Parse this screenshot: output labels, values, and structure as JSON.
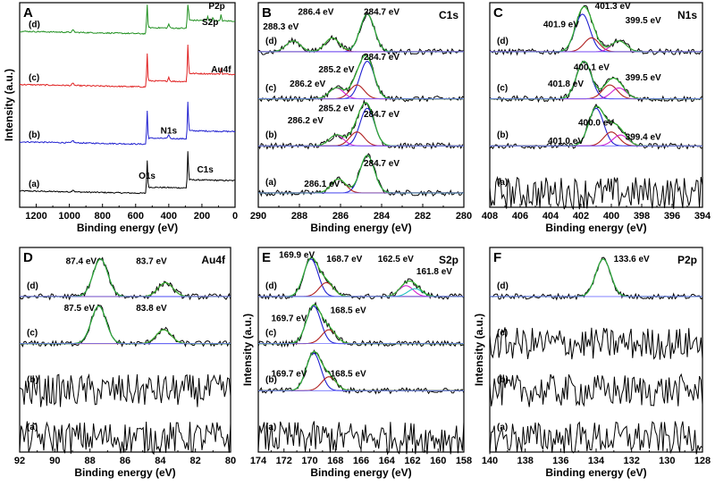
{
  "chart_data": [
    {
      "panel": "A",
      "type": "line",
      "xlabel": "Binding energy (eV)",
      "ylabel": "Intensity (a.u.)",
      "xlim": [
        1300,
        0
      ],
      "xticks": [
        "1200",
        "1000",
        "800",
        "600",
        "400",
        "200",
        "0"
      ],
      "series": [
        {
          "name": "(a)",
          "color": "#000000",
          "baseline": 0.06
        },
        {
          "name": "(b)",
          "color": "#2020d0",
          "baseline": 0.3
        },
        {
          "name": "(c)",
          "color": "#e02020",
          "baseline": 0.58
        },
        {
          "name": "(d)",
          "color": "#209020",
          "baseline": 0.84
        }
      ],
      "annotations": [
        {
          "text": "P2p",
          "x": 110,
          "y": 0.97
        },
        {
          "text": "S2p",
          "x": 150,
          "y": 0.89
        },
        {
          "text": "Au4f",
          "x": 84,
          "y": 0.66
        },
        {
          "text": "N1s",
          "x": 400,
          "y": 0.36
        },
        {
          "text": "O1s",
          "x": 531,
          "y": 0.14
        },
        {
          "text": "C1s",
          "x": 180,
          "y": 0.17
        }
      ]
    },
    {
      "panel": "B",
      "type": "line",
      "title": "C1s",
      "xlabel": "Binding energy (eV)",
      "xlim": [
        290,
        280
      ],
      "xticks": [
        "290",
        "288",
        "286",
        "284",
        "282",
        "280"
      ],
      "series": [
        {
          "name": "(a)",
          "peaks": [
            284.7,
            286.1
          ]
        },
        {
          "name": "(b)",
          "peaks": [
            284.7,
            285.2,
            286.2
          ]
        },
        {
          "name": "(c)",
          "peaks": [
            284.7,
            285.2,
            286.2
          ]
        },
        {
          "name": "(d)",
          "peaks": [
            284.7,
            286.4,
            288.3
          ]
        }
      ],
      "annotations": [
        {
          "text": "284.7 eV",
          "x": 284.0,
          "y": 0.2
        },
        {
          "text": "286.1 eV",
          "x": 286.9,
          "y": 0.1
        },
        {
          "text": "284.7 eV",
          "x": 284.0,
          "y": 0.44
        },
        {
          "text": "285.2 eV",
          "x": 286.2,
          "y": 0.47
        },
        {
          "text": "286.2 eV",
          "x": 287.7,
          "y": 0.41
        },
        {
          "text": "284.7 eV",
          "x": 284.0,
          "y": 0.72
        },
        {
          "text": "285.2 eV",
          "x": 286.2,
          "y": 0.66
        },
        {
          "text": "286.2 eV",
          "x": 287.6,
          "y": 0.59
        },
        {
          "text": "286.4 eV",
          "x": 287.2,
          "y": 0.94
        },
        {
          "text": "288.3 eV",
          "x": 288.9,
          "y": 0.87
        },
        {
          "text": "284.7 eV",
          "x": 284.0,
          "y": 0.94
        }
      ]
    },
    {
      "panel": "C",
      "type": "line",
      "title": "N1s",
      "xlabel": "Binding energy (eV)",
      "xlim": [
        408,
        394
      ],
      "xticks": [
        "408",
        "406",
        "404",
        "402",
        "400",
        "398",
        "396",
        "394"
      ],
      "series": [
        {
          "name": "(a)",
          "peaks": []
        },
        {
          "name": "(b)",
          "peaks": [
            401.0,
            400.0,
            399.4
          ]
        },
        {
          "name": "(c)",
          "peaks": [
            401.8,
            400.1,
            399.5
          ]
        },
        {
          "name": "(d)",
          "peaks": [
            401.9,
            401.3,
            399.5
          ]
        }
      ],
      "annotations": [
        {
          "text": "401.0 eV",
          "x": 403.0,
          "y": 0.31
        },
        {
          "text": "400.0 eV",
          "x": 401.0,
          "y": 0.4
        },
        {
          "text": "399.4 eV",
          "x": 397.9,
          "y": 0.33
        },
        {
          "text": "401.8 eV",
          "x": 403.0,
          "y": 0.59
        },
        {
          "text": "400.1 eV",
          "x": 401.3,
          "y": 0.67
        },
        {
          "text": "399.5 eV",
          "x": 397.9,
          "y": 0.62
        },
        {
          "text": "401.9 eV",
          "x": 403.3,
          "y": 0.88
        },
        {
          "text": "401.3 eV",
          "x": 399.9,
          "y": 0.97
        },
        {
          "text": "399.5 eV",
          "x": 397.9,
          "y": 0.9
        }
      ]
    },
    {
      "panel": "D",
      "type": "line",
      "title": "Au4f",
      "xlabel": "Binding energy (eV)",
      "xlim": [
        92,
        80
      ],
      "xticks": [
        "92",
        "90",
        "88",
        "86",
        "84",
        "82",
        "80"
      ],
      "series": [
        {
          "name": "(a)",
          "peaks": []
        },
        {
          "name": "(b)",
          "peaks": []
        },
        {
          "name": "(c)",
          "peaks": [
            87.5,
            83.8
          ]
        },
        {
          "name": "(d)",
          "peaks": [
            87.4,
            83.7
          ]
        }
      ],
      "annotations": [
        {
          "text": "87.4 eV",
          "x": 88.5,
          "y": 0.92
        },
        {
          "text": "83.7 eV",
          "x": 84.5,
          "y": 0.92
        },
        {
          "text": "87.5 eV",
          "x": 88.6,
          "y": 0.69
        },
        {
          "text": "83.8 eV",
          "x": 84.5,
          "y": 0.69
        }
      ]
    },
    {
      "panel": "E",
      "type": "line",
      "title": "S2p",
      "xlabel": "Binding energy (eV)",
      "ylabel": "Intensity (a.u.)",
      "xlim": [
        174,
        158
      ],
      "xticks": [
        "174",
        "172",
        "170",
        "168",
        "166",
        "164",
        "162",
        "160",
        "158"
      ],
      "series": [
        {
          "name": "(a)",
          "peaks": []
        },
        {
          "name": "(b)",
          "peaks": [
            169.7,
            168.5
          ]
        },
        {
          "name": "(c)",
          "peaks": [
            169.7,
            168.5
          ]
        },
        {
          "name": "(d)",
          "peaks": [
            169.9,
            168.7,
            162.5,
            161.8
          ]
        }
      ],
      "annotations": [
        {
          "text": "169.9 eV",
          "x": 171.0,
          "y": 0.95
        },
        {
          "text": "168.7 eV",
          "x": 167.3,
          "y": 0.93
        },
        {
          "text": "162.5 eV",
          "x": 163.3,
          "y": 0.93
        },
        {
          "text": "161.8 eV",
          "x": 160.3,
          "y": 0.87
        },
        {
          "text": "169.7 eV",
          "x": 171.6,
          "y": 0.64
        },
        {
          "text": "168.5 eV",
          "x": 167.0,
          "y": 0.68
        },
        {
          "text": "169.7 eV",
          "x": 171.6,
          "y": 0.37
        },
        {
          "text": "168.5 eV",
          "x": 167.0,
          "y": 0.37
        }
      ]
    },
    {
      "panel": "F",
      "type": "line",
      "title": "P2p",
      "xlabel": "Binding energy (eV)",
      "ylabel": "Intensity (a.u.)",
      "xlim": [
        140,
        128
      ],
      "xticks": [
        "140",
        "138",
        "136",
        "134",
        "132",
        "130",
        "128"
      ],
      "series": [
        {
          "name": "(a)",
          "peaks": []
        },
        {
          "name": "(b)",
          "peaks": []
        },
        {
          "name": "(c)",
          "peaks": []
        },
        {
          "name": "(d)",
          "peaks": [
            133.6
          ]
        }
      ],
      "annotations": [
        {
          "text": "133.6 eV",
          "x": 132.0,
          "y": 0.93
        }
      ]
    }
  ]
}
